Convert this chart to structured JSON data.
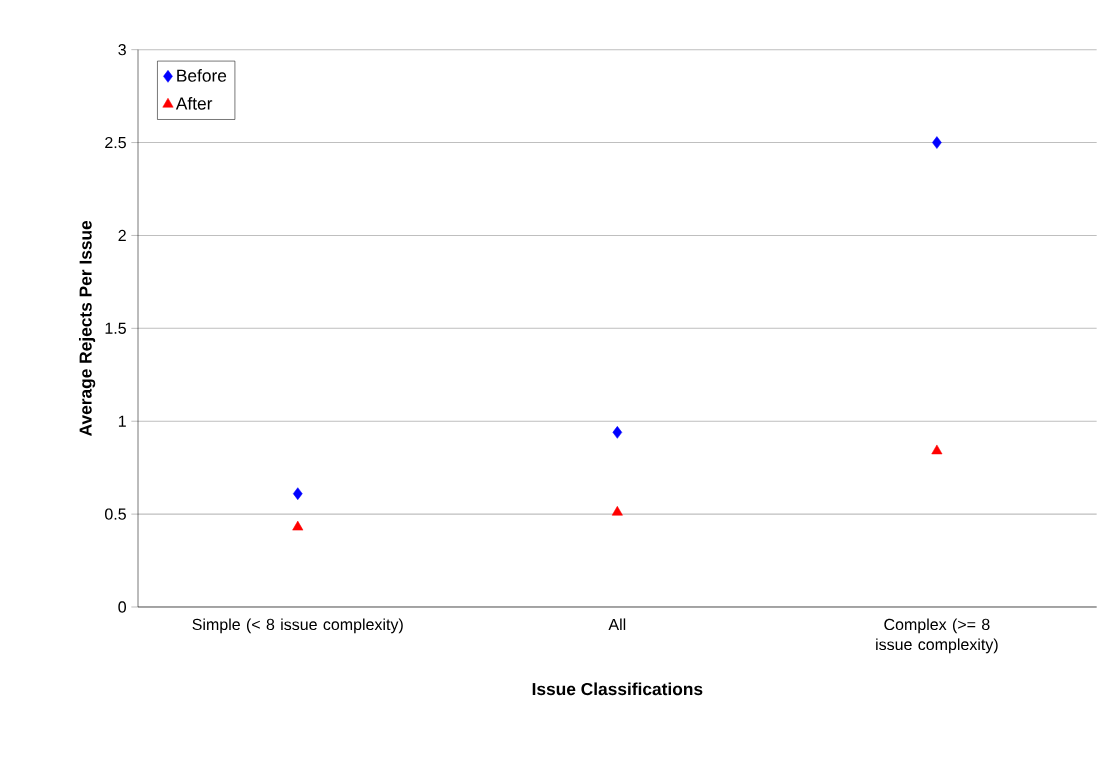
{
  "chart_data": {
    "type": "scatter",
    "xlabel": "Issue Classifications",
    "ylabel": "Average Rejects Per Issue",
    "categories": [
      "Simple (< 8 issue complexity)",
      "All",
      "Complex (>= 8 issue complexity)"
    ],
    "series": [
      {
        "name": "Before",
        "color": "#0000ff",
        "marker": "diamond",
        "values": [
          0.61,
          0.94,
          2.5
        ]
      },
      {
        "name": "After",
        "color": "#ff0000",
        "marker": "triangle",
        "values": [
          0.43,
          0.51,
          0.84
        ]
      }
    ],
    "ylim": [
      0,
      3
    ],
    "yticks": [
      0,
      0.5,
      1,
      1.5,
      2,
      2.5,
      3
    ],
    "grid": "y",
    "legend": "top left"
  }
}
